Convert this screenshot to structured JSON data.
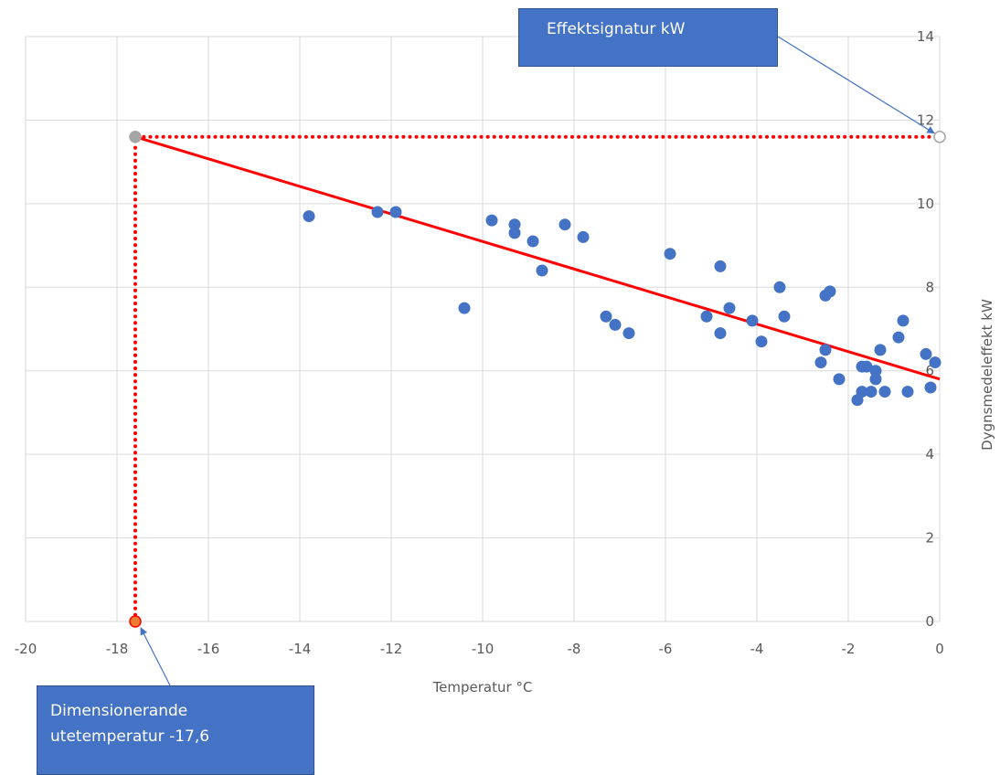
{
  "chart_data": {
    "type": "scatter",
    "xlabel": "Temperatur °C",
    "ylabel": "Dygnsmedeleffekt kW",
    "xlim": [
      -20,
      0
    ],
    "ylim": [
      0,
      14
    ],
    "x_ticks": [
      -20,
      -18,
      -16,
      -14,
      -12,
      -10,
      -8,
      -6,
      -4,
      -2,
      0
    ],
    "y_ticks": [
      0,
      2,
      4,
      6,
      8,
      10,
      12,
      14
    ],
    "y_axis_position": "right",
    "grid": true,
    "legend": "none",
    "series": [
      {
        "type": "scatter",
        "color": "#4472C4",
        "points": [
          [
            -13.8,
            9.7
          ],
          [
            -12.3,
            9.8
          ],
          [
            -11.9,
            9.8
          ],
          [
            -10.4,
            7.5
          ],
          [
            -9.8,
            9.6
          ],
          [
            -9.3,
            9.5
          ],
          [
            -9.3,
            9.3
          ],
          [
            -8.9,
            9.1
          ],
          [
            -8.7,
            8.4
          ],
          [
            -8.2,
            9.5
          ],
          [
            -7.8,
            9.2
          ],
          [
            -7.3,
            7.3
          ],
          [
            -7.1,
            7.1
          ],
          [
            -6.8,
            6.9
          ],
          [
            -5.9,
            8.8
          ],
          [
            -5.1,
            7.3
          ],
          [
            -4.8,
            8.5
          ],
          [
            -4.8,
            6.9
          ],
          [
            -4.6,
            7.5
          ],
          [
            -4.1,
            7.2
          ],
          [
            -3.9,
            6.7
          ],
          [
            -3.5,
            8.0
          ],
          [
            -3.4,
            7.3
          ],
          [
            -2.5,
            7.8
          ],
          [
            -2.4,
            7.9
          ],
          [
            -2.5,
            6.5
          ],
          [
            -2.6,
            6.2
          ],
          [
            -2.2,
            5.8
          ],
          [
            -1.8,
            5.3
          ],
          [
            -1.7,
            6.1
          ],
          [
            -1.7,
            5.5
          ],
          [
            -1.6,
            6.1
          ],
          [
            -1.5,
            5.5
          ],
          [
            -1.4,
            6.0
          ],
          [
            -1.4,
            5.8
          ],
          [
            -1.3,
            6.5
          ],
          [
            -1.2,
            5.5
          ],
          [
            -0.9,
            6.8
          ],
          [
            -0.8,
            7.2
          ],
          [
            -0.7,
            5.5
          ],
          [
            -0.3,
            6.4
          ],
          [
            -0.2,
            5.6
          ],
          [
            -0.1,
            6.2
          ]
        ]
      },
      {
        "type": "line",
        "color": "#FF0000",
        "points": [
          [
            -17.6,
            11.6
          ],
          [
            0,
            5.8
          ]
        ]
      },
      {
        "type": "dotted-line",
        "color": "#FF0000",
        "points": [
          [
            -17.6,
            0
          ],
          [
            -17.6,
            11.6
          ],
          [
            0,
            11.6
          ]
        ]
      },
      {
        "type": "markers",
        "points": [
          {
            "x": -17.6,
            "y": 11.6,
            "fill": "#A5A5A5",
            "stroke": "#A5A5A5"
          },
          {
            "x": 0,
            "y": 11.6,
            "fill": "#FFFFFF",
            "stroke": "#A5A5A5"
          },
          {
            "x": -17.6,
            "y": 0,
            "fill": "#ED7D31",
            "stroke": "#FF0000"
          }
        ]
      }
    ],
    "annotations": [
      {
        "text": "Effektsignatur kW",
        "target": [
          0,
          11.6
        ],
        "position": "top-right"
      },
      {
        "text_lines": [
          "Dimensionerande",
          "utetemperatur -17,6"
        ],
        "target": [
          -17.6,
          0
        ],
        "position": "bottom-left"
      }
    ]
  }
}
